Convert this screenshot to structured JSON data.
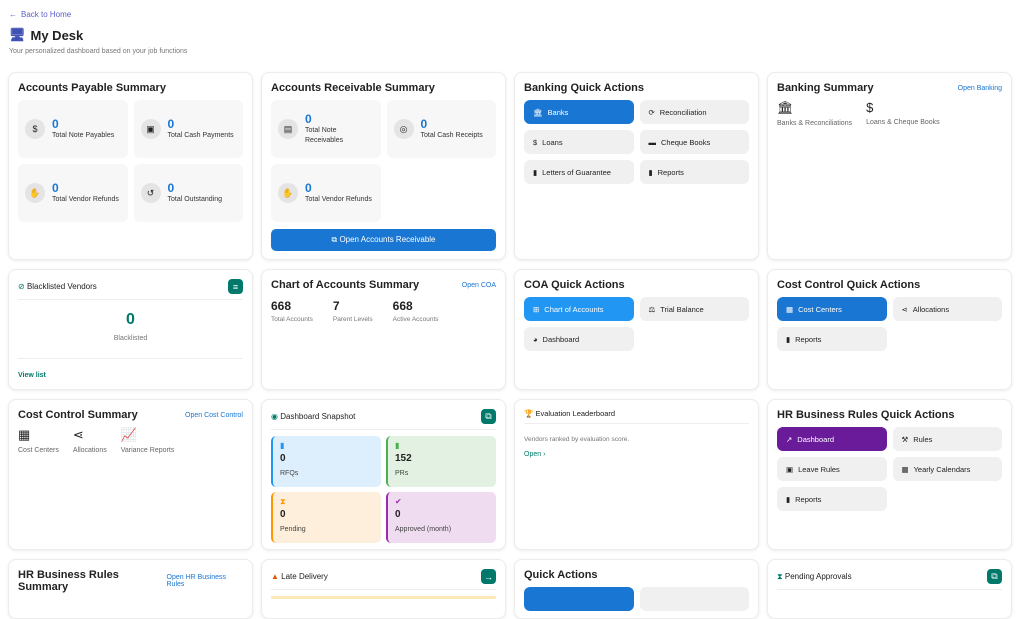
{
  "header": {
    "back": "Back to Home",
    "title": "My Desk",
    "subtitle": "Your personalized dashboard based on your job functions"
  },
  "ap": {
    "title": "Accounts Payable Summary",
    "stats": [
      {
        "value": "0",
        "label": "Total Note Payables",
        "icon": "hand-dollar-icon"
      },
      {
        "value": "0",
        "label": "Total Cash Payments",
        "icon": "money-icon"
      },
      {
        "value": "0",
        "label": "Total Vendor Refunds",
        "icon": "handshake-icon"
      },
      {
        "value": "0",
        "label": "Total Outstanding",
        "icon": "undo-icon"
      }
    ]
  },
  "ar": {
    "title": "Accounts Receivable Summary",
    "stats": [
      {
        "value": "0",
        "label": "Total Note Receivables",
        "icon": "document-icon"
      },
      {
        "value": "0",
        "label": "Total Cash Receipts",
        "icon": "coins-icon"
      },
      {
        "value": "0",
        "label": "Total Vendor Refunds",
        "icon": "handshake-icon"
      }
    ],
    "button": "Open Accounts Receivable"
  },
  "bqa": {
    "title": "Banking Quick Actions",
    "items": [
      "Banks",
      "Reconciliation",
      "Loans",
      "Cheque Books",
      "Letters of Guarantee",
      "Reports"
    ]
  },
  "bs": {
    "title": "Banking Summary",
    "link": "Open Banking",
    "items": [
      "Banks & Reconciliations",
      "Loans & Cheque Books"
    ]
  },
  "bl": {
    "title": "Blacklisted Vendors",
    "value": "0",
    "label": "Blacklisted",
    "link": "View list"
  },
  "coa": {
    "title": "Chart of Accounts Summary",
    "link": "Open COA",
    "stats": [
      {
        "value": "668",
        "label": "Total Accounts"
      },
      {
        "value": "7",
        "label": "Parent Levels"
      },
      {
        "value": "668",
        "label": "Active Accounts"
      }
    ]
  },
  "coaqa": {
    "title": "COA Quick Actions",
    "items": [
      "Chart of Accounts",
      "Trial Balance",
      "Dashboard"
    ]
  },
  "ccqa": {
    "title": "Cost Control Quick Actions",
    "items": [
      "Cost Centers",
      "Allocations",
      "Reports"
    ]
  },
  "ccs": {
    "title": "Cost Control Summary",
    "link": "Open Cost Control",
    "items": [
      "Cost Centers",
      "Allocations",
      "Variance Reports"
    ]
  },
  "snap": {
    "title": "Dashboard Snapshot",
    "items": [
      {
        "value": "0",
        "label": "RFQs",
        "color": "#2196f3",
        "bg": "#ddeefc"
      },
      {
        "value": "152",
        "label": "PRs",
        "color": "#4caf50",
        "bg": "#e2f1e2"
      },
      {
        "value": "0",
        "label": "Pending",
        "color": "#ff9800",
        "bg": "#fdefdb"
      },
      {
        "value": "0",
        "label": "Approved (month)",
        "color": "#9c27b0",
        "bg": "#efdcf1"
      }
    ]
  },
  "ev": {
    "title": "Evaluation Leaderboard",
    "text": "Vendors ranked by evaluation score.",
    "link": "Open"
  },
  "hrqa": {
    "title": "HR Business Rules Quick Actions",
    "items": [
      "Dashboard",
      "Rules",
      "Leave Rules",
      "Yearly Calendars",
      "Reports"
    ]
  },
  "hrs": {
    "title": "HR Business Rules Summary",
    "link": "Open HR Business Rules"
  },
  "late": {
    "title": "Late Delivery"
  },
  "qa": {
    "title": "Quick Actions"
  },
  "pa": {
    "title": "Pending Approvals"
  }
}
